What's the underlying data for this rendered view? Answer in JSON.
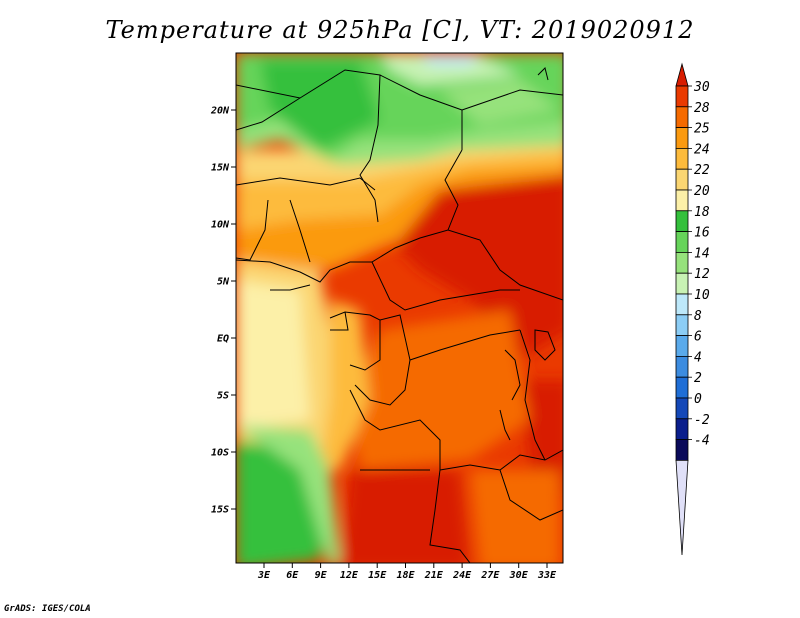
{
  "title": "Temperature at 925hPa [C], VT: 2019020912",
  "credit": "GrADS: IGES/COLA",
  "map": {
    "lat_labels": [
      "20N",
      "15N",
      "10N",
      "5N",
      "EQ",
      "5S",
      "10S",
      "15S"
    ],
    "lon_labels": [
      "3E",
      "6E",
      "9E",
      "12E",
      "15E",
      "18E",
      "21E",
      "24E",
      "27E",
      "30E",
      "33E"
    ]
  },
  "colorbar": {
    "labels": [
      "30",
      "28",
      "25",
      "24",
      "22",
      "20",
      "18",
      "16",
      "14",
      "12",
      "10",
      "8",
      "6",
      "4",
      "2",
      "0",
      "-2",
      "-4"
    ],
    "colors": [
      "#d81c00",
      "#ea3a00",
      "#f56a00",
      "#fb9a10",
      "#fdbb3c",
      "#fbd672",
      "#fcf0a8",
      "#34c03c",
      "#66d45a",
      "#96e27c",
      "#c8f2b4",
      "#bde8fa",
      "#8ccdf5",
      "#5aaaeb",
      "#3c8ce0",
      "#1f6ed6",
      "#1448b8",
      "#0a1e8c",
      "#0a0a5a",
      "#e0e0f8"
    ]
  }
}
